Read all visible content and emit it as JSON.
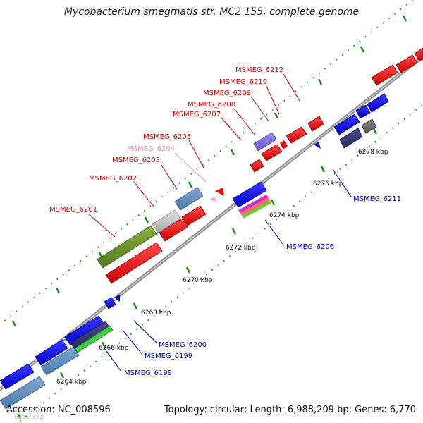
{
  "title": "Mycobacterium smegmatis str. MC2 155, complete genome",
  "footer": {
    "accession": "Accession: NC_008596",
    "summary": "Topology: circular; Length: 6,988,209 bp; Genes: 6,770"
  },
  "colors": {
    "backbone": "#8c8c8c",
    "tick": "#1a8a1a",
    "fwd_label": "#cc0000",
    "rev_label": "#0000cc",
    "pseudo_label": "#ee88bb"
  },
  "ticks": [
    {
      "label": "6262 kbp",
      "faded": true
    },
    {
      "label": "6264 kbp"
    },
    {
      "label": "6266 kbp"
    },
    {
      "label": "6268 kbp"
    },
    {
      "label": "6270 kbp"
    },
    {
      "label": "6272 kbp"
    },
    {
      "label": "6274 kbp"
    },
    {
      "label": "6276 kbp"
    },
    {
      "label": "6278 kbp"
    }
  ],
  "forward_labels": [
    {
      "text": "MSMEG_6201",
      "color": "#cc0000"
    },
    {
      "text": "MSMEG_6202",
      "color": "#cc0000"
    },
    {
      "text": "MSMEG_6203",
      "color": "#cc0000"
    },
    {
      "text": "MSMEG_6204",
      "color": "#ee88bb"
    },
    {
      "text": "MSMEG_6205",
      "color": "#cc0000"
    },
    {
      "text": "MSMEG_6207",
      "color": "#cc0000"
    },
    {
      "text": "MSMEG_6208",
      "color": "#cc0000"
    },
    {
      "text": "MSMEG_6209",
      "color": "#cc0000"
    },
    {
      "text": "MSMEG_6210",
      "color": "#cc0000"
    },
    {
      "text": "MSMEG_6212",
      "color": "#cc0000"
    }
  ],
  "reverse_labels": [
    {
      "text": "MSMEG_6198"
    },
    {
      "text": "MSMEG_6199"
    },
    {
      "text": "MSMEG_6200"
    },
    {
      "text": "MSMEG_6206"
    },
    {
      "text": "MSMEG_6211"
    }
  ]
}
